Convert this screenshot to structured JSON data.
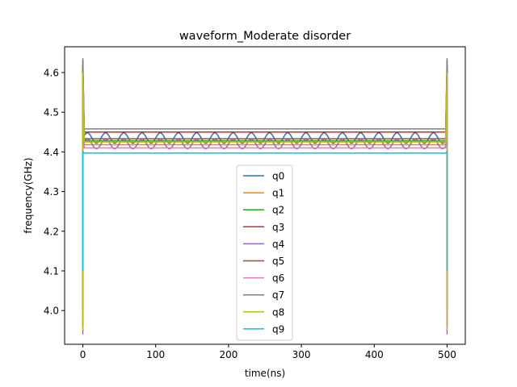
{
  "chart_data": {
    "type": "line",
    "title": "waveform_Moderate disorder",
    "xlabel": "time(ns)",
    "ylabel": "frequency(GHz)",
    "xlim": [
      -25,
      525
    ],
    "ylim": [
      3.915,
      4.665
    ],
    "xticks": [
      0,
      100,
      200,
      300,
      400,
      500
    ],
    "yticks": [
      4.0,
      4.1,
      4.2,
      4.3,
      4.4,
      4.5,
      4.6
    ],
    "ytick_labels": [
      "4.0",
      "4.1",
      "4.2",
      "4.3",
      "4.4",
      "4.5",
      "4.6"
    ],
    "grid": false,
    "legend_position": "lower center",
    "series": [
      {
        "name": "q0",
        "color": "#1f77b4",
        "base": 4.435,
        "edge_peak": 4.63,
        "edge_low": 4.0,
        "oscillation_amplitude": 0.013,
        "oscillation_period_ns": 25
      },
      {
        "name": "q1",
        "color": "#ff7f0e",
        "base": 4.418,
        "edge_peak": 4.6,
        "edge_low": 3.96
      },
      {
        "name": "q2",
        "color": "#2ca02c",
        "base": 4.428,
        "edge_peak": 4.62,
        "edge_low": 3.97
      },
      {
        "name": "q3",
        "color": "#d62728",
        "base": 4.45,
        "edge_peak": 4.62,
        "edge_low": 4.0
      },
      {
        "name": "q4",
        "color": "#9467bd",
        "base": 4.42,
        "edge_peak": 4.6,
        "edge_low": 3.94,
        "oscillation_amplitude": 0.012,
        "oscillation_period_ns": 25
      },
      {
        "name": "q5",
        "color": "#8c564b",
        "base": 4.433,
        "edge_peak": 4.6,
        "edge_low": 3.96
      },
      {
        "name": "q6",
        "color": "#e377c2",
        "base": 4.41,
        "edge_peak": 4.6,
        "edge_low": 3.96
      },
      {
        "name": "q7",
        "color": "#7f7f7f",
        "base": 4.458,
        "edge_peak": 4.635,
        "edge_low": 4.0
      },
      {
        "name": "q8",
        "color": "#bcbd22",
        "base": 4.425,
        "edge_peak": 4.6,
        "edge_low": 3.95
      },
      {
        "name": "q9",
        "color": "#17becf",
        "base": 4.397,
        "edge_peak": 4.4,
        "edge_low": 4.1
      }
    ]
  }
}
